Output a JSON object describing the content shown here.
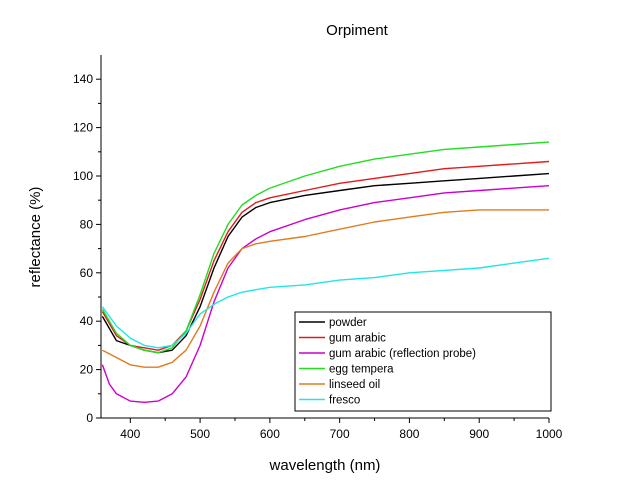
{
  "chart_data": {
    "type": "line",
    "title": "Orpiment",
    "xlabel": "wavelength (nm)",
    "ylabel": "reflectance (%)",
    "xlim": [
      358,
      1000
    ],
    "ylim": [
      0,
      150
    ],
    "xticks": [
      400,
      500,
      600,
      700,
      800,
      900,
      1000
    ],
    "yticks": [
      0,
      20,
      40,
      60,
      80,
      100,
      120,
      140
    ],
    "grid": false,
    "legend_position": "bottom-right",
    "series": [
      {
        "name": "powder",
        "color": "#000000",
        "x": [
          360,
          380,
          400,
          420,
          440,
          460,
          480,
          500,
          520,
          540,
          560,
          580,
          600,
          650,
          700,
          750,
          800,
          850,
          900,
          950,
          1000
        ],
        "y": [
          42,
          32,
          30,
          28,
          27,
          28,
          34,
          46,
          62,
          75,
          83,
          87,
          89,
          92,
          94,
          96,
          97,
          98,
          99,
          100,
          101
        ]
      },
      {
        "name": "gum arabic",
        "color": "#e31a1c",
        "x": [
          360,
          380,
          400,
          420,
          440,
          460,
          480,
          500,
          520,
          540,
          560,
          580,
          600,
          650,
          700,
          750,
          800,
          850,
          900,
          950,
          1000
        ],
        "y": [
          44,
          34,
          30,
          29,
          28,
          30,
          36,
          49,
          65,
          77,
          85,
          89,
          91,
          94,
          97,
          99,
          101,
          103,
          104,
          105,
          106
        ]
      },
      {
        "name": "gum arabic (reflection probe)",
        "color": "#cc00cc",
        "x": [
          360,
          370,
          380,
          400,
          420,
          440,
          460,
          480,
          500,
          520,
          540,
          560,
          580,
          600,
          650,
          700,
          750,
          800,
          850,
          900,
          950,
          1000
        ],
        "y": [
          22,
          14,
          10,
          7,
          6.5,
          7,
          10,
          17,
          30,
          48,
          62,
          70,
          74,
          77,
          82,
          86,
          89,
          91,
          93,
          94,
          95,
          96
        ]
      },
      {
        "name": "egg tempera",
        "color": "#22dd22",
        "x": [
          360,
          380,
          400,
          420,
          440,
          460,
          480,
          500,
          520,
          540,
          560,
          580,
          600,
          650,
          700,
          750,
          800,
          850,
          900,
          950,
          1000
        ],
        "y": [
          45,
          35,
          30,
          28,
          27,
          29,
          36,
          51,
          68,
          80,
          88,
          92,
          95,
          100,
          104,
          107,
          109,
          111,
          112,
          113,
          114
        ]
      },
      {
        "name": "linseed oil",
        "color": "#e07b1f",
        "x": [
          360,
          380,
          400,
          420,
          440,
          460,
          480,
          500,
          520,
          540,
          560,
          580,
          600,
          650,
          700,
          750,
          800,
          850,
          900,
          950,
          1000
        ],
        "y": [
          28,
          25,
          22,
          21,
          21,
          23,
          28,
          38,
          52,
          64,
          70,
          72,
          73,
          75,
          78,
          81,
          83,
          85,
          86,
          86,
          86
        ]
      },
      {
        "name": "fresco",
        "color": "#22e5e5",
        "x": [
          360,
          380,
          400,
          420,
          440,
          460,
          480,
          500,
          520,
          540,
          560,
          580,
          600,
          650,
          700,
          750,
          800,
          850,
          900,
          950,
          1000
        ],
        "y": [
          46,
          38,
          33,
          30,
          29,
          30,
          35,
          43,
          47,
          50,
          52,
          53,
          54,
          55,
          57,
          58,
          60,
          61,
          62,
          64,
          66
        ]
      }
    ]
  }
}
